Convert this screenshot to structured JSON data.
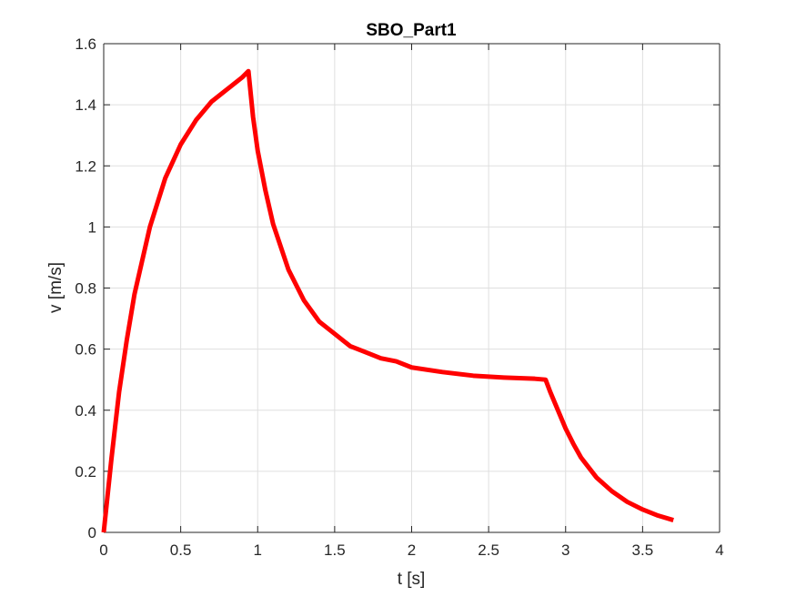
{
  "chart_data": {
    "type": "line",
    "title": "SBO_Part1",
    "xlabel": "t [s]",
    "ylabel": "v [m/s]",
    "xlim": [
      0,
      4
    ],
    "ylim": [
      0,
      1.6
    ],
    "xticks": [
      0,
      0.5,
      1,
      1.5,
      2,
      2.5,
      3,
      3.5,
      4
    ],
    "yticks": [
      0,
      0.2,
      0.4,
      0.6,
      0.8,
      1,
      1.2,
      1.4,
      1.6
    ],
    "xtick_labels": [
      "0",
      "0.5",
      "1",
      "1.5",
      "2",
      "2.5",
      "3",
      "3.5",
      "4"
    ],
    "ytick_labels": [
      "0",
      "0.2",
      "0.4",
      "0.6",
      "0.8",
      "1",
      "1.2",
      "1.4",
      "1.6"
    ],
    "grid": true,
    "legend": "none",
    "series": [
      {
        "color": "#ff0000",
        "x": [
          0,
          0.05,
          0.1,
          0.15,
          0.2,
          0.3,
          0.4,
          0.5,
          0.6,
          0.7,
          0.8,
          0.9,
          0.94,
          0.97,
          1.0,
          1.05,
          1.1,
          1.2,
          1.3,
          1.4,
          1.5,
          1.6,
          1.7,
          1.8,
          1.9,
          2.0,
          2.2,
          2.4,
          2.6,
          2.8,
          2.87,
          2.9,
          2.95,
          3.0,
          3.05,
          3.1,
          3.2,
          3.3,
          3.4,
          3.5,
          3.6,
          3.7
        ],
        "y": [
          0,
          0.24,
          0.46,
          0.63,
          0.78,
          1.0,
          1.16,
          1.27,
          1.35,
          1.41,
          1.45,
          1.49,
          1.51,
          1.36,
          1.25,
          1.12,
          1.01,
          0.86,
          0.76,
          0.69,
          0.65,
          0.61,
          0.59,
          0.57,
          0.56,
          0.54,
          0.525,
          0.513,
          0.507,
          0.503,
          0.5,
          0.46,
          0.4,
          0.34,
          0.29,
          0.245,
          0.18,
          0.135,
          0.1,
          0.075,
          0.055,
          0.04
        ]
      }
    ]
  }
}
